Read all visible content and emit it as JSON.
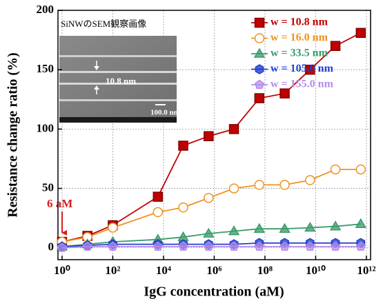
{
  "chart_data": {
    "type": "line",
    "xlabel": "IgG concentration (aM)",
    "ylabel": "Resistance change ratio (%)",
    "x": [
      1,
      10,
      100,
      6000,
      60000,
      600000,
      6000000,
      60000000,
      600000000,
      6000000000,
      60000000000,
      600000000000
    ],
    "series": [
      {
        "name": "w = 10.8 nm",
        "color": "#c00000",
        "marker": "square",
        "values": [
          5,
          10,
          19,
          43,
          86,
          94,
          100,
          126,
          130,
          150,
          170,
          181
        ]
      },
      {
        "name": "w = 16.0 nm",
        "color": "#f0921a",
        "marker": "circle",
        "values": [
          5,
          9,
          17,
          30,
          34,
          42,
          50,
          53,
          53,
          57,
          66,
          66
        ]
      },
      {
        "name": "w = 33.5 nm",
        "color": "#3a9a6a",
        "marker": "triangle",
        "values": [
          1,
          3,
          5,
          7,
          9,
          12,
          14,
          16,
          16,
          17,
          18,
          20
        ]
      },
      {
        "name": "w = 105.0 nm",
        "color": "#1f3fd0",
        "marker": "hexagon",
        "values": [
          1,
          2,
          3,
          3,
          3,
          3,
          3,
          4,
          4,
          4,
          4,
          4
        ]
      },
      {
        "name": "w = 155.0 nm",
        "color": "#b58be8",
        "marker": "pentagon",
        "values": [
          0,
          1,
          1,
          1,
          1,
          1,
          1,
          1,
          1,
          1,
          1,
          1
        ]
      }
    ],
    "xscale": "log",
    "xlim": [
      0.69,
      1460000000000
    ],
    "xticks": [
      {
        "value": 1,
        "label": "10⁰"
      },
      {
        "value": 100,
        "label": "10²"
      },
      {
        "value": 10000,
        "label": "10⁴"
      },
      {
        "value": 1000000,
        "label": "10⁶"
      },
      {
        "value": 100000000,
        "label": "10⁸"
      },
      {
        "value": 10000000000,
        "label": "10¹⁰"
      },
      {
        "value": 1000000000000,
        "label": "10¹²"
      }
    ],
    "ylim": [
      -10,
      200
    ],
    "yticks": [
      0,
      50,
      100,
      150,
      200
    ],
    "grid": true,
    "legend": "upper right",
    "annotations": [
      "6 aM",
      "SiNWのSEM観察画像",
      "10.8 nm",
      "100.0 nm"
    ]
  }
}
